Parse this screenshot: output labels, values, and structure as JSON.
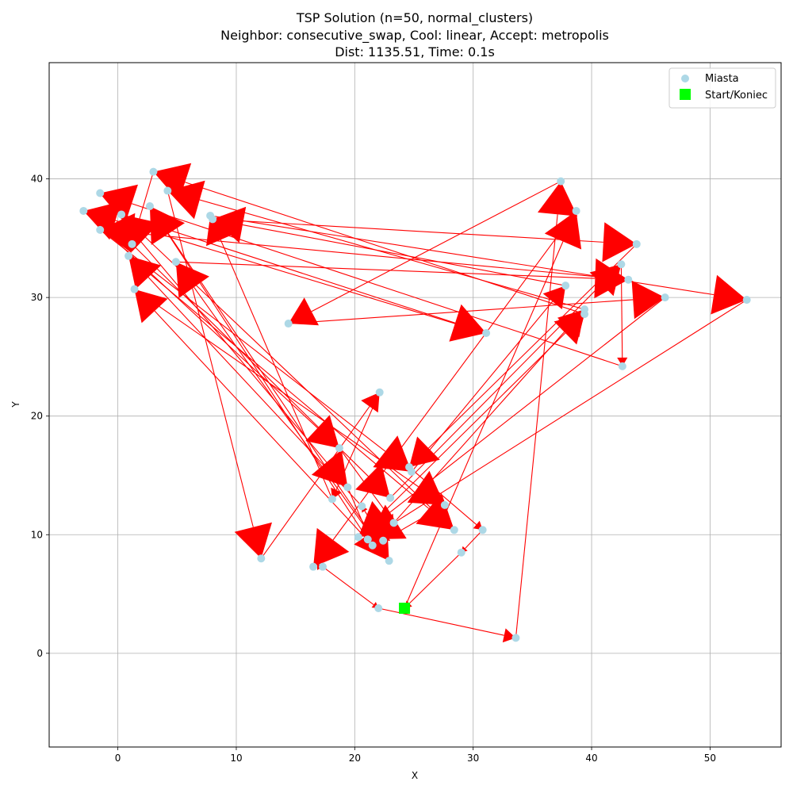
{
  "chart_data": {
    "type": "scatter",
    "title_lines": [
      "TSP Solution (n=50, normal_clusters)",
      "Neighbor: consecutive_swap, Cool: linear, Accept: metropolis",
      "Dist: 1135.51, Time: 0.1s"
    ],
    "xlabel": "X",
    "ylabel": "Y",
    "xlim": [
      -5.8,
      56
    ],
    "ylim": [
      -7.9,
      49.8
    ],
    "xticks": [
      0,
      10,
      20,
      30,
      40,
      50
    ],
    "yticks": [
      0,
      10,
      20,
      30,
      40
    ],
    "grid": true,
    "legend": {
      "placement": "top-right",
      "entries": [
        {
          "label": "Miasta",
          "marker": "circle",
          "color": "#add8e6"
        },
        {
          "label": "Start/Koniec",
          "marker": "square",
          "color": "#00ff00"
        }
      ]
    },
    "colors": {
      "city": "#add8e6",
      "start": "#00ff00",
      "path": "#ff0000"
    },
    "start": [
      24.2,
      3.8
    ],
    "cities": [
      [
        24.2,
        3.8
      ],
      [
        22.0,
        3.8
      ],
      [
        33.6,
        1.3
      ],
      [
        12.1,
        8.0
      ],
      [
        16.5,
        7.3
      ],
      [
        17.3,
        7.3
      ],
      [
        22.9,
        7.8
      ],
      [
        20.3,
        9.8
      ],
      [
        21.1,
        9.6
      ],
      [
        21.5,
        9.1
      ],
      [
        22.4,
        9.5
      ],
      [
        23.3,
        11.0
      ],
      [
        20.6,
        12.4
      ],
      [
        19.4,
        14.0
      ],
      [
        18.1,
        13.0
      ],
      [
        18.7,
        17.3
      ],
      [
        22.1,
        22.0
      ],
      [
        23.0,
        13.1
      ],
      [
        24.6,
        15.7
      ],
      [
        24.8,
        15.3
      ],
      [
        27.6,
        12.5
      ],
      [
        28.4,
        10.4
      ],
      [
        30.8,
        10.4
      ],
      [
        29.0,
        8.5
      ],
      [
        31.1,
        27.0
      ],
      [
        14.4,
        27.8
      ],
      [
        37.8,
        31.0
      ],
      [
        39.4,
        29.0
      ],
      [
        39.4,
        28.6
      ],
      [
        42.5,
        32.8
      ],
      [
        43.1,
        31.5
      ],
      [
        43.8,
        34.5
      ],
      [
        46.2,
        30.0
      ],
      [
        53.1,
        29.8
      ],
      [
        42.6,
        24.2
      ],
      [
        37.4,
        39.8
      ],
      [
        38.7,
        37.3
      ],
      [
        -1.5,
        38.8
      ],
      [
        3.0,
        40.6
      ],
      [
        4.2,
        39.0
      ],
      [
        -2.9,
        37.3
      ],
      [
        0.3,
        37.0
      ],
      [
        2.7,
        37.7
      ],
      [
        7.8,
        36.9
      ],
      [
        8.0,
        36.6
      ],
      [
        -1.5,
        35.7
      ],
      [
        1.2,
        34.5
      ],
      [
        0.9,
        33.5
      ],
      [
        4.9,
        33.0
      ],
      [
        1.4,
        30.7
      ]
    ],
    "tour": [
      0,
      36,
      4,
      5,
      1,
      2,
      35,
      25,
      32,
      7,
      28,
      38,
      46,
      17,
      29,
      34,
      37,
      13,
      9,
      49,
      20,
      10,
      12,
      47,
      21,
      41,
      24,
      40,
      15,
      11,
      27,
      39,
      3,
      16,
      14,
      43,
      33,
      8,
      42,
      6,
      48,
      30,
      45,
      19,
      26,
      44,
      31,
      18,
      22,
      23,
      0
    ]
  }
}
